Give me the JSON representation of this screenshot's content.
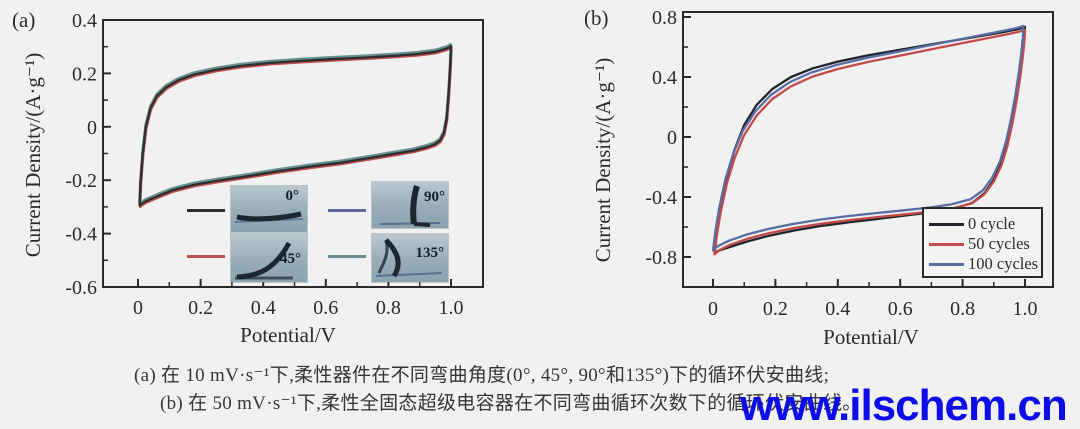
{
  "figure": {
    "background": "#f1f1f1",
    "panel_a_label": "(a)",
    "panel_b_label": "(b)"
  },
  "caption": {
    "line1": "(a) 在 10 mV·s⁻¹下,柔性器件在不同弯曲角度(0°, 45°, 90°和135°)下的循环伏安曲线;",
    "line2": "(b) 在 50 mV·s⁻¹下,柔性全固态超级电容器在不同弯曲循环次数下的循环伏安曲线。",
    "color": "#363636"
  },
  "watermark": {
    "text": "www.ilschem.cn",
    "color": "#0d0deb"
  },
  "chart_data": [
    {
      "type": "line",
      "panel": "(a)",
      "title": "",
      "xlabel": "Potential/V",
      "ylabel": "Current Density/(A·g⁻¹)",
      "xlim": [
        0,
        1.0
      ],
      "ylim": [
        -0.6,
        0.4
      ],
      "x_ticks": [
        0,
        0.2,
        0.4,
        0.6,
        0.8,
        1.0
      ],
      "x_tick_labels": [
        "0",
        "0.2",
        "0.4",
        "0.6",
        "0.8",
        "1.0"
      ],
      "y_ticks": [
        0.4,
        0.2,
        0,
        -0.2,
        -0.4,
        -0.6
      ],
      "y_tick_labels": [
        "0.4",
        "0.2",
        "0",
        "-0.2",
        "-0.4",
        "-0.6"
      ],
      "grid": false,
      "legend_position": "inside bottom-center, 2x2 grid with bending photos",
      "note": "four CV loops at bending angles nearly overlap",
      "series": [
        {
          "name": "0°",
          "color": "#2e2e2e",
          "loop": [
            [
              0.005,
              -0.295
            ],
            [
              0.008,
              -0.21
            ],
            [
              0.015,
              -0.1
            ],
            [
              0.025,
              0.0
            ],
            [
              0.04,
              0.07
            ],
            [
              0.06,
              0.115
            ],
            [
              0.09,
              0.148
            ],
            [
              0.13,
              0.175
            ],
            [
              0.18,
              0.196
            ],
            [
              0.25,
              0.214
            ],
            [
              0.33,
              0.228
            ],
            [
              0.42,
              0.239
            ],
            [
              0.52,
              0.247
            ],
            [
              0.62,
              0.253
            ],
            [
              0.72,
              0.259
            ],
            [
              0.81,
              0.265
            ],
            [
              0.89,
              0.272
            ],
            [
              0.95,
              0.281
            ],
            [
              0.985,
              0.293
            ],
            [
              1.0,
              0.302
            ],
            [
              0.997,
              0.22
            ],
            [
              0.992,
              0.12
            ],
            [
              0.986,
              0.03
            ],
            [
              0.977,
              -0.025
            ],
            [
              0.965,
              -0.052
            ],
            [
              0.948,
              -0.066
            ],
            [
              0.92,
              -0.077
            ],
            [
              0.88,
              -0.089
            ],
            [
              0.82,
              -0.101
            ],
            [
              0.74,
              -0.117
            ],
            [
              0.65,
              -0.134
            ],
            [
              0.55,
              -0.149
            ],
            [
              0.45,
              -0.166
            ],
            [
              0.35,
              -0.185
            ],
            [
              0.26,
              -0.201
            ],
            [
              0.18,
              -0.217
            ],
            [
              0.11,
              -0.238
            ],
            [
              0.06,
              -0.261
            ],
            [
              0.025,
              -0.279
            ],
            [
              0.008,
              -0.291
            ]
          ]
        },
        {
          "name": "45°",
          "color": "#c0504d",
          "loop_same_as": 0
        },
        {
          "name": "90°",
          "color": "#5f6a9d",
          "loop_same_as": 0
        },
        {
          "name": "135°",
          "color": "#67908f",
          "loop_same_as": 0
        }
      ]
    },
    {
      "type": "line",
      "panel": "(b)",
      "title": "",
      "xlabel": "Potential/V",
      "ylabel": "Current Density/(A·g⁻¹)",
      "xlim": [
        0,
        1.0
      ],
      "ylim": [
        -1.0,
        0.83
      ],
      "x_ticks": [
        0,
        0.2,
        0.4,
        0.6,
        0.8,
        1.0
      ],
      "x_tick_labels": [
        "0",
        "0.2",
        "0.4",
        "0.6",
        "0.8",
        "1.0"
      ],
      "y_ticks": [
        0.8,
        0.4,
        0,
        -0.4,
        -0.8
      ],
      "y_tick_labels": [
        "0.8",
        "0.4",
        "0",
        "-0.4",
        "-0.8"
      ],
      "grid": false,
      "legend_position": "inside lower-right box",
      "series": [
        {
          "name": "0 cycle",
          "color": "#23252e",
          "loop": [
            [
              0.005,
              -0.77
            ],
            [
              0.012,
              -0.64
            ],
            [
              0.025,
              -0.46
            ],
            [
              0.045,
              -0.26
            ],
            [
              0.07,
              -0.08
            ],
            [
              0.1,
              0.08
            ],
            [
              0.14,
              0.215
            ],
            [
              0.19,
              0.32
            ],
            [
              0.25,
              0.4
            ],
            [
              0.32,
              0.458
            ],
            [
              0.4,
              0.503
            ],
            [
              0.5,
              0.546
            ],
            [
              0.61,
              0.585
            ],
            [
              0.72,
              0.625
            ],
            [
              0.83,
              0.663
            ],
            [
              0.92,
              0.695
            ],
            [
              0.98,
              0.72
            ],
            [
              1.0,
              0.735
            ],
            [
              0.998,
              0.66
            ],
            [
              0.993,
              0.55
            ],
            [
              0.985,
              0.42
            ],
            [
              0.974,
              0.27
            ],
            [
              0.96,
              0.11
            ],
            [
              0.944,
              -0.04
            ],
            [
              0.925,
              -0.17
            ],
            [
              0.9,
              -0.285
            ],
            [
              0.87,
              -0.375
            ],
            [
              0.83,
              -0.44
            ],
            [
              0.77,
              -0.478
            ],
            [
              0.7,
              -0.503
            ],
            [
              0.62,
              -0.523
            ],
            [
              0.53,
              -0.545
            ],
            [
              0.44,
              -0.567
            ],
            [
              0.35,
              -0.592
            ],
            [
              0.26,
              -0.623
            ],
            [
              0.18,
              -0.658
            ],
            [
              0.11,
              -0.697
            ],
            [
              0.055,
              -0.733
            ],
            [
              0.02,
              -0.757
            ]
          ]
        },
        {
          "name": "50 cycles",
          "color": "#c24b4a",
          "loop": [
            [
              0.005,
              -0.775
            ],
            [
              0.012,
              -0.655
            ],
            [
              0.025,
              -0.49
            ],
            [
              0.045,
              -0.3
            ],
            [
              0.07,
              -0.13
            ],
            [
              0.1,
              0.02
            ],
            [
              0.14,
              0.15
            ],
            [
              0.19,
              0.26
            ],
            [
              0.25,
              0.345
            ],
            [
              0.32,
              0.41
            ],
            [
              0.4,
              0.46
            ],
            [
              0.5,
              0.508
            ],
            [
              0.61,
              0.553
            ],
            [
              0.72,
              0.6
            ],
            [
              0.83,
              0.645
            ],
            [
              0.92,
              0.682
            ],
            [
              0.98,
              0.708
            ],
            [
              1.0,
              0.72
            ],
            [
              0.998,
              0.65
            ],
            [
              0.993,
              0.54
            ],
            [
              0.985,
              0.41
            ],
            [
              0.974,
              0.26
            ],
            [
              0.96,
              0.1
            ],
            [
              0.944,
              -0.05
            ],
            [
              0.925,
              -0.18
            ],
            [
              0.9,
              -0.29
            ],
            [
              0.87,
              -0.375
            ],
            [
              0.83,
              -0.435
            ],
            [
              0.77,
              -0.468
            ],
            [
              0.7,
              -0.49
            ],
            [
              0.62,
              -0.508
            ],
            [
              0.53,
              -0.527
            ],
            [
              0.44,
              -0.547
            ],
            [
              0.35,
              -0.57
            ],
            [
              0.26,
              -0.6
            ],
            [
              0.18,
              -0.634
            ],
            [
              0.11,
              -0.672
            ],
            [
              0.055,
              -0.712
            ],
            [
              0.02,
              -0.748
            ]
          ]
        },
        {
          "name": "100 cycles",
          "color": "#5a6da5",
          "loop_same_as": 1
        }
      ]
    }
  ]
}
